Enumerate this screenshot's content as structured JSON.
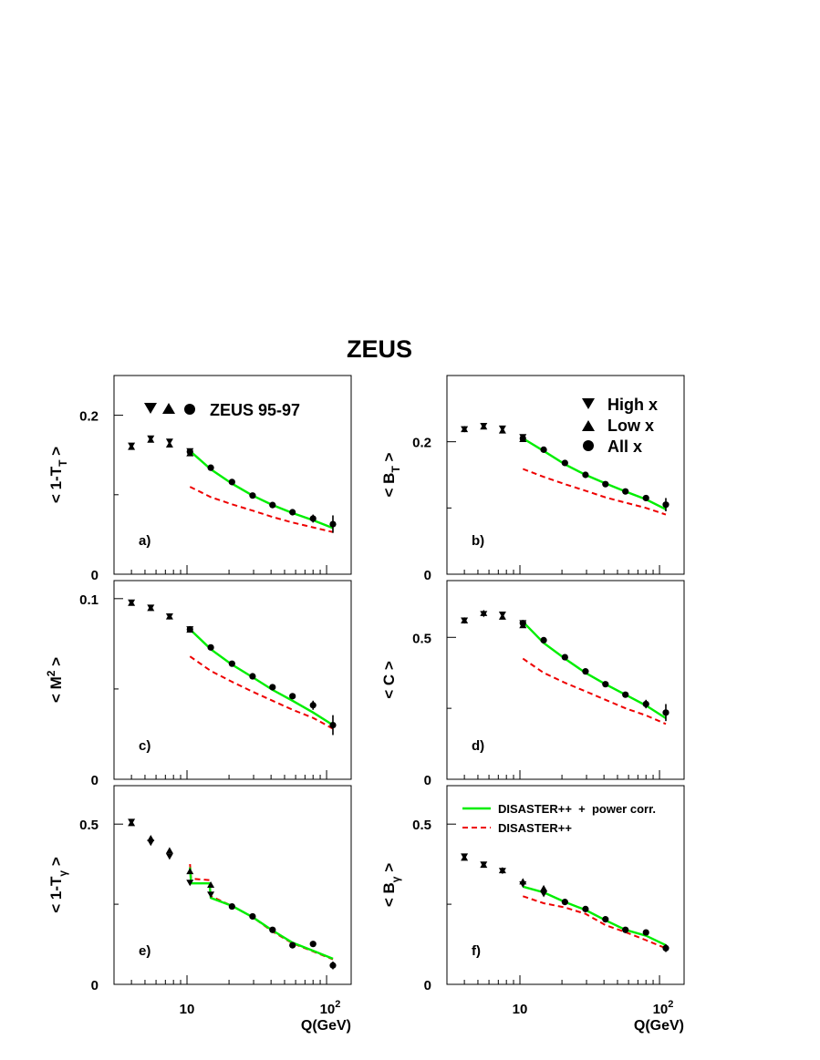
{
  "title": "ZEUS",
  "x_axis": {
    "label": "Q(GeV)",
    "scale": "log",
    "range": [
      3.0,
      150
    ],
    "major_ticks": [
      {
        "value": 10,
        "base": "10",
        "exp": ""
      },
      {
        "value": 100,
        "base": "10",
        "exp": "2"
      }
    ]
  },
  "legend_top": {
    "label": "ZEUS 95-97"
  },
  "legend_markers": [
    {
      "symbol": "down-triangle",
      "label": "High x"
    },
    {
      "symbol": "up-triangle",
      "label": "Low x"
    },
    {
      "symbol": "circle",
      "label": "All x"
    }
  ],
  "legend_lines": [
    {
      "style": "solid",
      "color": "#00ee00",
      "label": "DISASTER++  +  power corr."
    },
    {
      "style": "dashed",
      "color": "#ee0000",
      "label": "DISASTER++"
    }
  ],
  "chart_data": [
    {
      "type": "scatter",
      "tag": "a)",
      "ylabel": {
        "main": "< 1-T",
        "sub": "T",
        "tail": " >",
        "sup": ""
      },
      "ylim": [
        0,
        0.25
      ],
      "yticks": [
        {
          "v": 0,
          "t": "0"
        },
        {
          "v": 0.2,
          "t": "0.2"
        }
      ],
      "high_x": {
        "x": [
          4.0,
          5.5,
          7.5,
          10.5
        ],
        "y": [
          0.161,
          0.17,
          0.166,
          0.154
        ]
      },
      "low_x": {
        "x": [
          4.0,
          5.5,
          7.5,
          10.5
        ],
        "y": [
          0.161,
          0.17,
          0.164,
          0.153
        ]
      },
      "all_x": {
        "x": [
          10.5,
          14.8,
          21,
          29.5,
          41,
          57,
          80,
          111
        ],
        "y": [
          0.154,
          0.134,
          0.116,
          0.099,
          0.087,
          0.078,
          0.07,
          0.063
        ],
        "err": [
          0.003,
          0.003,
          0.002,
          0.002,
          0.002,
          0.002,
          0.005,
          0.011
        ]
      },
      "power_corr": {
        "x": [
          10.5,
          14.8,
          21,
          29.5,
          41,
          57,
          80,
          111
        ],
        "y": [
          0.155,
          0.132,
          0.114,
          0.099,
          0.087,
          0.077,
          0.068,
          0.058
        ]
      },
      "disaster": {
        "x": [
          10.5,
          14.8,
          21,
          29.5,
          41,
          57,
          80,
          111
        ],
        "y": [
          0.11,
          0.097,
          0.088,
          0.08,
          0.072,
          0.065,
          0.059,
          0.053
        ]
      }
    },
    {
      "type": "scatter",
      "tag": "b)",
      "ylabel": {
        "main": "< B",
        "sub": "T",
        "tail": " >",
        "sup": ""
      },
      "ylim": [
        0,
        0.3
      ],
      "yticks": [
        {
          "v": 0,
          "t": "0"
        },
        {
          "v": 0.2,
          "t": "0.2"
        }
      ],
      "high_x": {
        "x": [
          4.0,
          5.5,
          7.5,
          10.5
        ],
        "y": [
          0.218,
          0.223,
          0.219,
          0.206
        ]
      },
      "low_x": {
        "x": [
          4.0,
          5.5,
          7.5,
          10.5
        ],
        "y": [
          0.22,
          0.224,
          0.218,
          0.205
        ]
      },
      "all_x": {
        "x": [
          10.5,
          14.8,
          21,
          29.5,
          41,
          57,
          80,
          111
        ],
        "y": [
          0.205,
          0.188,
          0.168,
          0.15,
          0.136,
          0.125,
          0.115,
          0.105
        ],
        "err": [
          0.003,
          0.003,
          0.002,
          0.002,
          0.002,
          0.002,
          0.004,
          0.01
        ]
      },
      "power_corr": {
        "x": [
          10.5,
          14.8,
          21,
          29.5,
          41,
          57,
          80,
          111
        ],
        "y": [
          0.205,
          0.186,
          0.166,
          0.15,
          0.137,
          0.125,
          0.113,
          0.098
        ]
      },
      "disaster": {
        "x": [
          10.5,
          14.8,
          21,
          29.5,
          41,
          57,
          80,
          111
        ],
        "y": [
          0.159,
          0.147,
          0.136,
          0.126,
          0.116,
          0.108,
          0.1,
          0.09
        ]
      }
    },
    {
      "type": "scatter",
      "tag": "c)",
      "ylabel": {
        "main": "< M",
        "sub": "",
        "tail": " >",
        "sup": "2"
      },
      "ylim": [
        0,
        0.11
      ],
      "yticks": [
        {
          "v": 0,
          "t": "0"
        },
        {
          "v": 0.1,
          "t": "0.1"
        }
      ],
      "high_x": {
        "x": [
          4.0,
          5.5,
          7.5,
          10.5
        ],
        "y": [
          0.0975,
          0.0947,
          0.0898,
          0.0827
        ]
      },
      "low_x": {
        "x": [
          4.0,
          5.5,
          7.5,
          10.5
        ],
        "y": [
          0.098,
          0.0952,
          0.0905,
          0.0832
        ]
      },
      "all_x": {
        "x": [
          10.5,
          14.8,
          21,
          29.5,
          41,
          57,
          80,
          111
        ],
        "y": [
          0.083,
          0.073,
          0.064,
          0.057,
          0.051,
          0.046,
          0.041,
          0.03
        ],
        "err": [
          0.0015,
          0.0015,
          0.0012,
          0.0012,
          0.0012,
          0.0012,
          0.0025,
          0.0055
        ]
      },
      "power_corr": {
        "x": [
          10.5,
          14.8,
          21,
          29.5,
          41,
          57,
          80,
          111
        ],
        "y": [
          0.083,
          0.072,
          0.0635,
          0.0565,
          0.0495,
          0.0435,
          0.037,
          0.03
        ]
      },
      "disaster": {
        "x": [
          10.5,
          14.8,
          21,
          29.5,
          41,
          57,
          80,
          111
        ],
        "y": [
          0.068,
          0.06,
          0.054,
          0.0485,
          0.0435,
          0.0385,
          0.034,
          0.028
        ]
      }
    },
    {
      "type": "scatter",
      "tag": "d)",
      "ylabel": {
        "main": "< C >",
        "sub": "",
        "tail": "",
        "sup": ""
      },
      "ylim": [
        0,
        0.7
      ],
      "yticks": [
        {
          "v": 0,
          "t": "0"
        },
        {
          "v": 0.5,
          "t": "0.5"
        }
      ],
      "high_x": {
        "x": [
          4.0,
          5.5,
          7.5,
          10.5
        ],
        "y": [
          0.557,
          0.58,
          0.578,
          0.548
        ]
      },
      "low_x": {
        "x": [
          4.0,
          5.5,
          7.5,
          10.5
        ],
        "y": [
          0.562,
          0.588,
          0.575,
          0.545
        ]
      },
      "all_x": {
        "x": [
          10.5,
          14.8,
          21,
          29.5,
          41,
          57,
          80,
          111
        ],
        "y": [
          0.55,
          0.49,
          0.43,
          0.38,
          0.335,
          0.298,
          0.265,
          0.235
        ],
        "err": [
          0.008,
          0.008,
          0.006,
          0.006,
          0.006,
          0.006,
          0.015,
          0.03
        ]
      },
      "power_corr": {
        "x": [
          10.5,
          14.8,
          21,
          29.5,
          41,
          57,
          80,
          111
        ],
        "y": [
          0.555,
          0.48,
          0.425,
          0.375,
          0.335,
          0.298,
          0.26,
          0.215
        ]
      },
      "disaster": {
        "x": [
          10.5,
          14.8,
          21,
          29.5,
          41,
          57,
          80,
          111
        ],
        "y": [
          0.425,
          0.375,
          0.34,
          0.31,
          0.28,
          0.25,
          0.225,
          0.195
        ]
      }
    },
    {
      "type": "scatter",
      "tag": "e)",
      "ylabel": {
        "main": "< 1-T",
        "sub": "γ",
        "tail": " >",
        "sup": ""
      },
      "ylim": [
        0,
        0.62
      ],
      "yticks": [
        {
          "v": 0,
          "t": "0"
        },
        {
          "v": 0.5,
          "t": "0.5"
        }
      ],
      "high_x": {
        "x": [
          4.0,
          5.5,
          7.5,
          10.5,
          14.8
        ],
        "y": [
          0.505,
          0.44,
          0.397,
          0.315,
          0.278
        ]
      },
      "low_x": {
        "x": [
          4.0,
          5.5,
          7.5,
          10.5,
          14.8
        ],
        "y": [
          0.505,
          0.458,
          0.42,
          0.355,
          0.313
        ]
      },
      "all_x": {
        "x": [
          21,
          29.5,
          41,
          57,
          80,
          111
        ],
        "y": [
          0.243,
          0.212,
          0.17,
          0.122,
          0.126,
          0.059
        ],
        "err": [
          0.003,
          0.003,
          0.003,
          0.003,
          0.008,
          0.012
        ]
      },
      "power_corr": {
        "x": [
          10.5,
          10.7,
          14.5,
          14.8,
          21,
          29.5,
          41,
          57,
          80,
          111
        ],
        "y": [
          0.365,
          0.315,
          0.315,
          0.27,
          0.245,
          0.21,
          0.168,
          0.13,
          0.105,
          0.08
        ]
      },
      "disaster": {
        "x": [
          10.5,
          10.7,
          14.5,
          14.8,
          21,
          29.5,
          41,
          57,
          80,
          111
        ],
        "y": [
          0.375,
          0.33,
          0.325,
          0.275,
          0.245,
          0.21,
          0.165,
          0.128,
          0.103,
          0.078
        ]
      }
    },
    {
      "type": "scatter",
      "tag": "f)",
      "ylabel": {
        "main": "< B",
        "sub": "γ",
        "tail": " >",
        "sup": ""
      },
      "ylim": [
        0,
        0.62
      ],
      "yticks": [
        {
          "v": 0,
          "t": "0"
        },
        {
          "v": 0.5,
          "t": "0.5"
        }
      ],
      "high_x": {
        "x": [
          4.0,
          5.5,
          7.5,
          10.5,
          14.8
        ],
        "y": [
          0.397,
          0.372,
          0.352,
          0.31,
          0.28
        ]
      },
      "low_x": {
        "x": [
          4.0,
          5.5,
          7.5,
          10.5,
          14.8
        ],
        "y": [
          0.397,
          0.375,
          0.358,
          0.323,
          0.302
        ]
      },
      "all_x": {
        "x": [
          21,
          29.5,
          41,
          57,
          80,
          111
        ],
        "y": [
          0.257,
          0.235,
          0.203,
          0.17,
          0.162,
          0.113
        ],
        "err": [
          0.003,
          0.003,
          0.003,
          0.003,
          0.006,
          0.012
        ]
      },
      "power_corr": {
        "x": [
          10.5,
          14.8,
          21,
          29.5,
          41,
          57,
          80,
          111
        ],
        "y": [
          0.305,
          0.287,
          0.257,
          0.232,
          0.2,
          0.17,
          0.152,
          0.122
        ]
      },
      "disaster": {
        "x": [
          10.5,
          14.8,
          21,
          29.5,
          41,
          57,
          80,
          111
        ],
        "y": [
          0.275,
          0.253,
          0.24,
          0.22,
          0.185,
          0.163,
          0.138,
          0.113
        ]
      }
    }
  ]
}
